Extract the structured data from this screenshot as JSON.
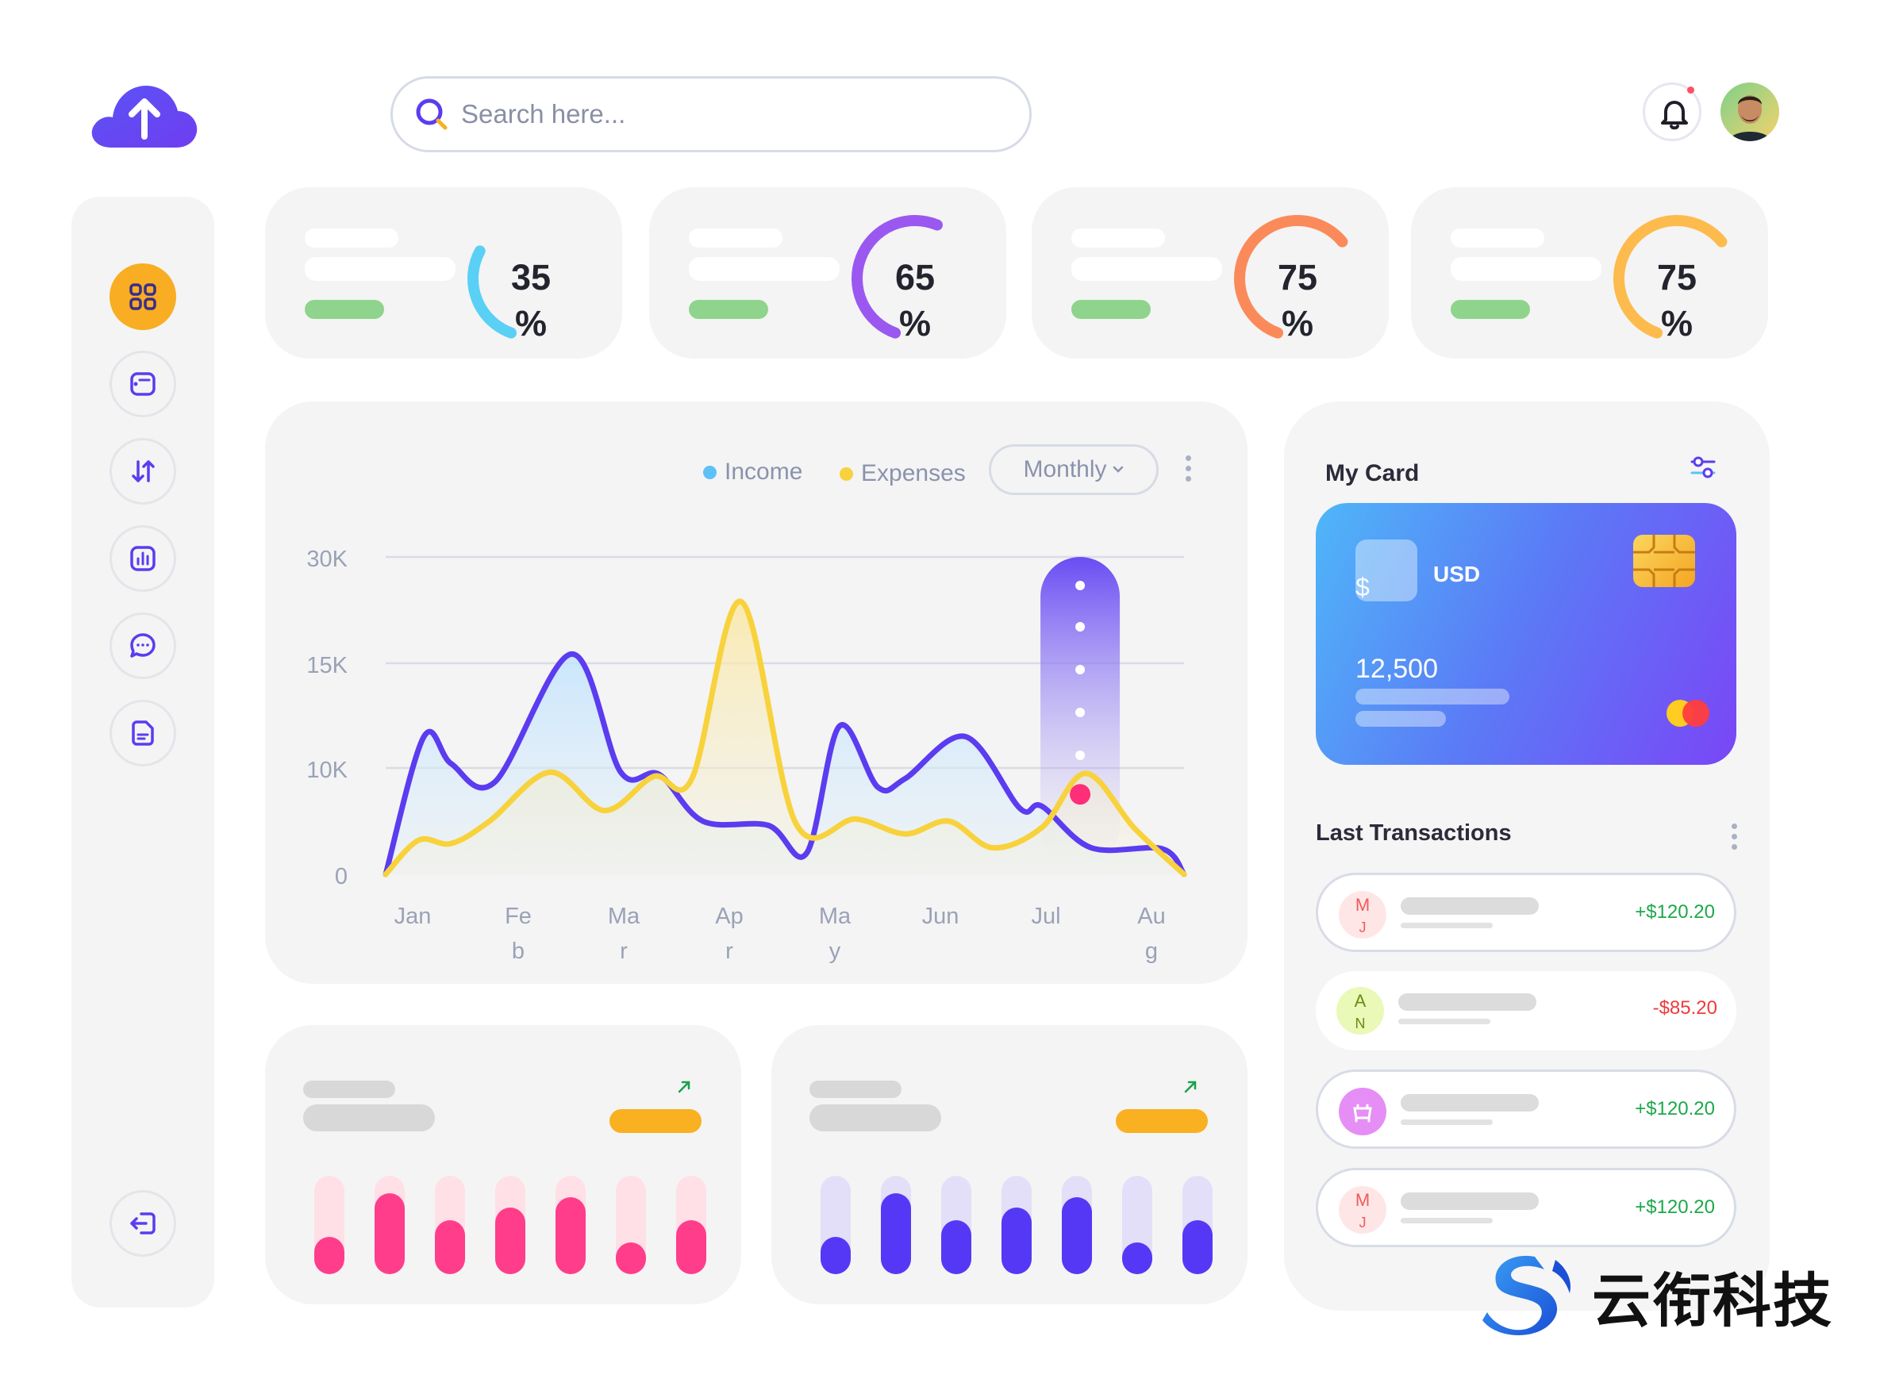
{
  "search": {
    "placeholder": "Search here..."
  },
  "stats": [
    {
      "value": 35,
      "label": "35",
      "unit": "%",
      "color": "#5ad0f5"
    },
    {
      "value": 65,
      "label": "65",
      "unit": "%",
      "color": "#9a58f0"
    },
    {
      "value": 75,
      "label": "75",
      "unit": "%",
      "color": "#fb8a5a"
    },
    {
      "value": 75,
      "label": "75",
      "unit": "%",
      "color": "#fdbb4d"
    }
  ],
  "chart": {
    "legend_income": "Income",
    "legend_expenses": "Expenses",
    "period_select": "Monthly"
  },
  "chart_data": {
    "type": "area",
    "x_tick_labels": [
      "Jan",
      "Feb",
      "Mar",
      "Apr",
      "May",
      "Jun",
      "Jul",
      "Aug"
    ],
    "y_tick_labels": [
      "0",
      "10K",
      "15K",
      "30K"
    ],
    "series": [
      {
        "name": "Income",
        "color": "#5b3cf0",
        "values": [
          [
            0.0,
            0
          ],
          [
            0.35,
            11500
          ],
          [
            0.6,
            10200
          ],
          [
            1.0,
            8700
          ],
          [
            1.7,
            16300
          ],
          [
            2.15,
            9600
          ],
          [
            2.5,
            9400
          ],
          [
            2.9,
            5000
          ],
          [
            3.5,
            4600
          ],
          [
            3.85,
            2000
          ],
          [
            4.15,
            12000
          ],
          [
            4.5,
            8200
          ],
          [
            4.75,
            9000
          ],
          [
            5.3,
            11500
          ],
          [
            5.8,
            6200
          ],
          [
            6.0,
            6400
          ],
          [
            6.45,
            2500
          ],
          [
            7.1,
            2400
          ],
          [
            7.3,
            0
          ]
        ]
      },
      {
        "name": "Expenses",
        "color": "#f8d23c",
        "values": [
          [
            0.0,
            0
          ],
          [
            0.3,
            3200
          ],
          [
            0.6,
            2900
          ],
          [
            0.95,
            5000
          ],
          [
            1.5,
            9600
          ],
          [
            2.0,
            6000
          ],
          [
            2.45,
            9200
          ],
          [
            2.8,
            9000
          ],
          [
            3.25,
            23700
          ],
          [
            3.75,
            4800
          ],
          [
            4.3,
            5200
          ],
          [
            4.75,
            3800
          ],
          [
            5.15,
            5000
          ],
          [
            5.55,
            2500
          ],
          [
            6.0,
            4400
          ],
          [
            6.4,
            9500
          ],
          [
            6.85,
            4300
          ],
          [
            7.3,
            0
          ]
        ]
      }
    ],
    "highlight_month": "Jul",
    "grid": true
  },
  "card": {
    "title": "My Card",
    "currency": "USD",
    "symbol": "$",
    "amount": "12,500"
  },
  "transactions": {
    "title": "Last Transactions",
    "items": [
      {
        "initials_top": "M",
        "initials_bottom": "J",
        "amount": "+$120.20",
        "type": "income",
        "avatar_color": "#ffe6e6",
        "text_color": "#f05a5a"
      },
      {
        "initials_top": "A",
        "initials_bottom": "N",
        "amount": "-$85.20",
        "type": "expense",
        "avatar_color": "#eaf8b8",
        "text_color": "#6a8a10"
      },
      {
        "initials_top": "",
        "initials_bottom": "",
        "amount": "+$120.20",
        "type": "income",
        "avatar_color": "#e58ef5",
        "text_color": "#ffffff"
      },
      {
        "initials_top": "M",
        "initials_bottom": "J",
        "amount": "+$120.20",
        "type": "income",
        "avatar_color": "#ffe6e6",
        "text_color": "#f05a5a"
      }
    ]
  },
  "bar_cards": [
    {
      "accent": "#ff3d8b",
      "track": "#ffe0e6",
      "levels": [
        0.38,
        0.82,
        0.55,
        0.68,
        0.78,
        0.32,
        0.55
      ]
    },
    {
      "accent": "#5538f5",
      "track": "#e3dff8",
      "levels": [
        0.38,
        0.82,
        0.55,
        0.68,
        0.78,
        0.32,
        0.55
      ]
    }
  ],
  "brand": {
    "name": "云衔科技"
  },
  "icons": {
    "logo": "cloud-upload-icon",
    "nav": [
      "dashboard-icon",
      "wallet-icon",
      "transfer-icon",
      "chart-icon",
      "chat-icon",
      "document-icon",
      "logout-icon"
    ]
  }
}
